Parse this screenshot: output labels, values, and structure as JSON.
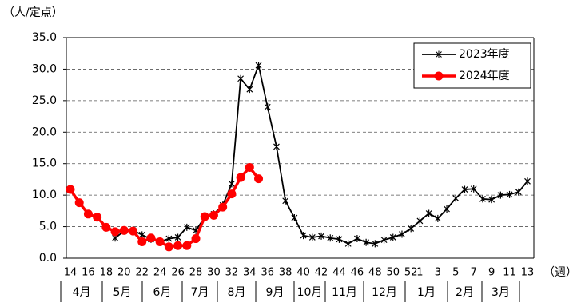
{
  "chart_data": {
    "type": "line",
    "y_label": "（人/定点）",
    "x_label": "（週）",
    "categories": [
      "14",
      null,
      "16",
      null,
      "18",
      null,
      "20",
      null,
      "22",
      null,
      "24",
      null,
      "26",
      null,
      "28",
      null,
      "30",
      null,
      "32",
      null,
      "34",
      null,
      "36",
      null,
      "38",
      null,
      "40",
      null,
      "42",
      null,
      "44",
      null,
      "46",
      null,
      "48",
      null,
      "50",
      null,
      "52",
      "1",
      null,
      "3",
      null,
      "5",
      null,
      "7",
      null,
      "9",
      null,
      "11",
      null,
      "13"
    ],
    "months": [
      "4月",
      "5月",
      "6月",
      "7月",
      "8月",
      "9月",
      "10月",
      "11月",
      "12月",
      "1月",
      "2月",
      "3月"
    ],
    "series": [
      {
        "name": "2023年度",
        "color": "#000000",
        "marker": "asterisk",
        "values": [
          null,
          null,
          null,
          null,
          null,
          3.2,
          4.3,
          4.4,
          3.7,
          3.0,
          2.6,
          3.1,
          3.3,
          4.9,
          4.4,
          6.5,
          7.0,
          8.4,
          11.8,
          28.5,
          26.8,
          30.6,
          24.0,
          17.7,
          9.1,
          6.4,
          3.6,
          3.3,
          3.5,
          3.2,
          3.0,
          2.3,
          3.1,
          2.5,
          2.3,
          2.9,
          3.3,
          3.8,
          4.7,
          5.9,
          7.1,
          6.3,
          7.8,
          9.5,
          10.9,
          11.0,
          9.4,
          9.3,
          10.0,
          10.1,
          10.5,
          12.2
        ]
      },
      {
        "name": "2024年度",
        "color": "#ff0000",
        "marker": "circle",
        "values": [
          10.9,
          8.8,
          7.0,
          6.5,
          4.9,
          4.2,
          4.4,
          4.3,
          2.6,
          3.2,
          2.6,
          1.8,
          2.0,
          2.0,
          3.1,
          6.6,
          6.8,
          8.1,
          10.2,
          12.8,
          14.4,
          12.6,
          null,
          null,
          null,
          null,
          null,
          null,
          null,
          null,
          null,
          null,
          null,
          null,
          null,
          null,
          null,
          null,
          null,
          null,
          null,
          null,
          null,
          null,
          null,
          null,
          null,
          null,
          null,
          null,
          null,
          null
        ]
      }
    ],
    "ylim": [
      0,
      35
    ],
    "yticks": [
      {
        "value": 0,
        "label": "0.0"
      },
      {
        "value": 5,
        "label": "5.0"
      },
      {
        "value": 10,
        "label": "10.0"
      },
      {
        "value": 15,
        "label": "15.0"
      },
      {
        "value": 20,
        "label": "20.0"
      },
      {
        "value": 25,
        "label": "25.0"
      },
      {
        "value": 30,
        "label": "30.0"
      },
      {
        "value": 35,
        "label": "35.0"
      }
    ],
    "grid": true,
    "legend": "upper right"
  }
}
